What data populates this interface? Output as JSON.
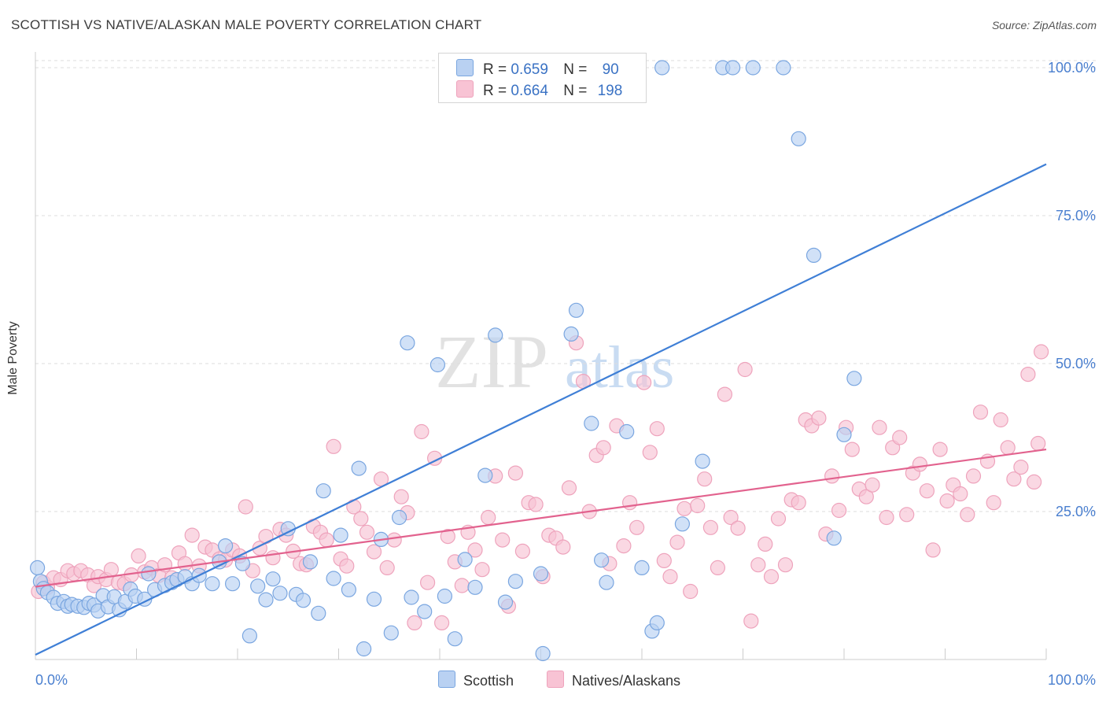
{
  "title": "SCOTTISH VS NATIVE/ALASKAN MALE POVERTY CORRELATION CHART",
  "source": "Source: ZipAtlas.com",
  "watermark": {
    "zip": "ZIP",
    "atlas": "atlas"
  },
  "colors": {
    "blue": "#3f7fd6",
    "blue_fill": "#b9d1f2",
    "pink": "#e2628e",
    "pink_fill": "#f8c3d4",
    "tick_text": "#4a7fcf",
    "grid": "#dddddd"
  },
  "legend_top": [
    {
      "series": "Scottish",
      "r_label": "R =",
      "r_value": "0.659",
      "n_label": "N =",
      "n_value": "90"
    },
    {
      "series": "Natives/Alaskans",
      "r_label": "R =",
      "r_value": "0.664",
      "n_label": "N =",
      "n_value": "198"
    }
  ],
  "legend_bottom": [
    "Scottish",
    "Natives/Alaskans"
  ],
  "chart_data": {
    "type": "scatter",
    "title": "SCOTTISH VS NATIVE/ALASKAN MALE POVERTY CORRELATION CHART",
    "xlabel": "",
    "ylabel": "Male Poverty",
    "xlim": [
      0,
      100
    ],
    "ylim": [
      0,
      102
    ],
    "x_tick_labels": {
      "left": "0.0%",
      "right": "100.0%"
    },
    "y_ticks": [
      25,
      50,
      75,
      100
    ],
    "y_tick_labels": [
      "25.0%",
      "50.0%",
      "75.0%",
      "100.0%"
    ],
    "grid": true,
    "series": [
      {
        "name": "Scottish",
        "r": 0.659,
        "n": 90,
        "trend": {
          "x": [
            0,
            100
          ],
          "y": [
            0.8,
            83.7
          ]
        },
        "points": [
          [
            0.2,
            15.5
          ],
          [
            0.5,
            13.2
          ],
          [
            0.8,
            12
          ],
          [
            1.2,
            11.3
          ],
          [
            1.8,
            10.5
          ],
          [
            2.2,
            9.5
          ],
          [
            2.8,
            9.8
          ],
          [
            3.2,
            9
          ],
          [
            3.6,
            9.3
          ],
          [
            4.2,
            9
          ],
          [
            4.8,
            8.8
          ],
          [
            5.3,
            9.5
          ],
          [
            5.8,
            9.2
          ],
          [
            6.2,
            8.2
          ],
          [
            6.7,
            10.8
          ],
          [
            7.2,
            8.9
          ],
          [
            7.8,
            10.6
          ],
          [
            8.3,
            8.4
          ],
          [
            8.9,
            9.8
          ],
          [
            9.4,
            11.9
          ],
          [
            9.9,
            10.7
          ],
          [
            10.8,
            10.2
          ],
          [
            11.2,
            14.5
          ],
          [
            11.8,
            11.8
          ],
          [
            12.8,
            12.5
          ],
          [
            13.5,
            13
          ],
          [
            14,
            13.5
          ],
          [
            14.8,
            14
          ],
          [
            15.5,
            12.8
          ],
          [
            16.2,
            14.2
          ],
          [
            17.5,
            12.8
          ],
          [
            18.2,
            16.5
          ],
          [
            18.8,
            19.2
          ],
          [
            19.5,
            12.8
          ],
          [
            20.5,
            16.2
          ],
          [
            21.2,
            4
          ],
          [
            22,
            12.4
          ],
          [
            22.8,
            10.1
          ],
          [
            23.5,
            13.6
          ],
          [
            24.2,
            11.2
          ],
          [
            25,
            22.1
          ],
          [
            25.8,
            11
          ],
          [
            26.5,
            10
          ],
          [
            27.2,
            16.5
          ],
          [
            28,
            7.8
          ],
          [
            28.5,
            28.5
          ],
          [
            29.5,
            13.7
          ],
          [
            30.2,
            21
          ],
          [
            31,
            11.8
          ],
          [
            32,
            32.3
          ],
          [
            32.5,
            1.8
          ],
          [
            33.5,
            10.2
          ],
          [
            34.2,
            20.3
          ],
          [
            35.2,
            4.5
          ],
          [
            36,
            24
          ],
          [
            36.8,
            53.5
          ],
          [
            37.2,
            10.5
          ],
          [
            38.5,
            8.1
          ],
          [
            39.8,
            49.8
          ],
          [
            40.5,
            10.7
          ],
          [
            41.5,
            3.5
          ],
          [
            42.5,
            16.9
          ],
          [
            43.5,
            12.2
          ],
          [
            44.5,
            31.1
          ],
          [
            45.5,
            54.8
          ],
          [
            46.5,
            9.7
          ],
          [
            47.5,
            13.2
          ],
          [
            50,
            14.5
          ],
          [
            50.2,
            1
          ],
          [
            53,
            55
          ],
          [
            53.5,
            59
          ],
          [
            55,
            39.9
          ],
          [
            56,
            16.8
          ],
          [
            56.5,
            13
          ],
          [
            58.5,
            38.5
          ],
          [
            60,
            15.5
          ],
          [
            61,
            4.8
          ],
          [
            61.5,
            6.2
          ],
          [
            62,
            100
          ],
          [
            64,
            22.9
          ],
          [
            66,
            33.5
          ],
          [
            68,
            100
          ],
          [
            69,
            100
          ],
          [
            71,
            100
          ],
          [
            74,
            100
          ],
          [
            75.5,
            88
          ],
          [
            77,
            68.3
          ],
          [
            79,
            20.5
          ],
          [
            80,
            38
          ],
          [
            81,
            47.5
          ]
        ]
      },
      {
        "name": "Natives/Alaskans",
        "r": 0.664,
        "n": 198,
        "trend": {
          "x": [
            0,
            100
          ],
          "y": [
            12.3,
            35.5
          ]
        },
        "points": [
          [
            0.3,
            11.5
          ],
          [
            0.8,
            13
          ],
          [
            1.2,
            12.2
          ],
          [
            1.8,
            13.8
          ],
          [
            2.5,
            13.5
          ],
          [
            3.2,
            15
          ],
          [
            3.8,
            14.5
          ],
          [
            4.5,
            15
          ],
          [
            5.2,
            14.3
          ],
          [
            5.8,
            12.5
          ],
          [
            6.2,
            14
          ],
          [
            7,
            13.5
          ],
          [
            7.5,
            15.2
          ],
          [
            8.2,
            13
          ],
          [
            8.8,
            12.8
          ],
          [
            9.5,
            14.3
          ],
          [
            10.2,
            17.5
          ],
          [
            10.8,
            14.8
          ],
          [
            11.5,
            15.5
          ],
          [
            12.2,
            14.2
          ],
          [
            12.8,
            16
          ],
          [
            13.5,
            13.8
          ],
          [
            14.2,
            18
          ],
          [
            14.8,
            16.2
          ],
          [
            15.5,
            21
          ],
          [
            16.2,
            15.8
          ],
          [
            16.8,
            19
          ],
          [
            17.5,
            18.5
          ],
          [
            18.2,
            17
          ],
          [
            18.8,
            16.8
          ],
          [
            19.5,
            18.5
          ],
          [
            20.2,
            17.5
          ],
          [
            20.8,
            25.8
          ],
          [
            21.5,
            15
          ],
          [
            22.2,
            18.8
          ],
          [
            22.8,
            20.8
          ],
          [
            23.5,
            17.2
          ],
          [
            24.2,
            22
          ],
          [
            24.8,
            21
          ],
          [
            25.5,
            18.3
          ],
          [
            26.2,
            16.2
          ],
          [
            26.8,
            16
          ],
          [
            27.5,
            22.5
          ],
          [
            28.2,
            21.5
          ],
          [
            28.8,
            20.2
          ],
          [
            29.5,
            36
          ],
          [
            30.2,
            17
          ],
          [
            30.8,
            15.8
          ],
          [
            31.5,
            25.8
          ],
          [
            32.2,
            23.8
          ],
          [
            32.8,
            21.5
          ],
          [
            33.5,
            18.2
          ],
          [
            34.2,
            30.5
          ],
          [
            34.8,
            15.5
          ],
          [
            35.5,
            20.2
          ],
          [
            36.2,
            27.5
          ],
          [
            36.8,
            24.8
          ],
          [
            37.5,
            6.2
          ],
          [
            38.2,
            38.5
          ],
          [
            38.8,
            13
          ],
          [
            39.5,
            34
          ],
          [
            40.2,
            6.2
          ],
          [
            40.8,
            20.8
          ],
          [
            41.5,
            16.5
          ],
          [
            42.2,
            12.5
          ],
          [
            42.8,
            21.5
          ],
          [
            43.5,
            18.5
          ],
          [
            44.2,
            15.2
          ],
          [
            44.8,
            24
          ],
          [
            45.5,
            31
          ],
          [
            46.2,
            20.2
          ],
          [
            46.8,
            9
          ],
          [
            47.5,
            31.5
          ],
          [
            48.2,
            18.3
          ],
          [
            48.8,
            26.5
          ],
          [
            49.5,
            26.2
          ],
          [
            50.2,
            14
          ],
          [
            50.8,
            21
          ],
          [
            51.5,
            20.5
          ],
          [
            52.2,
            19
          ],
          [
            52.8,
            29
          ],
          [
            53.5,
            53.5
          ],
          [
            54.2,
            47
          ],
          [
            54.8,
            25
          ],
          [
            55.5,
            34.5
          ],
          [
            56.2,
            35.8
          ],
          [
            56.8,
            16.2
          ],
          [
            57.5,
            39.5
          ],
          [
            58.2,
            19.2
          ],
          [
            58.8,
            26.5
          ],
          [
            59.5,
            22.3
          ],
          [
            60.2,
            46.8
          ],
          [
            60.8,
            35
          ],
          [
            61.5,
            39
          ],
          [
            62.2,
            16.7
          ],
          [
            62.8,
            14
          ],
          [
            63.5,
            19.8
          ],
          [
            64.2,
            25.5
          ],
          [
            64.8,
            11.5
          ],
          [
            65.5,
            26
          ],
          [
            66.2,
            30.5
          ],
          [
            66.8,
            22.3
          ],
          [
            67.5,
            15.5
          ],
          [
            68.2,
            44.8
          ],
          [
            68.8,
            24
          ],
          [
            69.5,
            22.2
          ],
          [
            70.2,
            49
          ],
          [
            70.8,
            6.5
          ],
          [
            71.5,
            16
          ],
          [
            72.2,
            19.5
          ],
          [
            72.8,
            14
          ],
          [
            73.5,
            23.8
          ],
          [
            74.2,
            16
          ],
          [
            74.8,
            27
          ],
          [
            75.5,
            26.5
          ],
          [
            76.2,
            40.5
          ],
          [
            76.8,
            39.5
          ],
          [
            77.5,
            40.8
          ],
          [
            78.2,
            21.2
          ],
          [
            78.8,
            31
          ],
          [
            79.5,
            25.2
          ],
          [
            80.2,
            39.2
          ],
          [
            80.8,
            35.5
          ],
          [
            81.5,
            28.8
          ],
          [
            82.2,
            27.5
          ],
          [
            82.8,
            29.5
          ],
          [
            83.5,
            39.2
          ],
          [
            84.2,
            24
          ],
          [
            84.8,
            35.8
          ],
          [
            85.5,
            37.5
          ],
          [
            86.2,
            24.5
          ],
          [
            86.8,
            31.5
          ],
          [
            87.5,
            33
          ],
          [
            88.2,
            28.5
          ],
          [
            88.8,
            18.5
          ],
          [
            89.5,
            35.5
          ],
          [
            90.2,
            26.8
          ],
          [
            90.8,
            29.5
          ],
          [
            91.5,
            28
          ],
          [
            92.2,
            24.5
          ],
          [
            92.8,
            31
          ],
          [
            93.5,
            41.8
          ],
          [
            94.2,
            33.5
          ],
          [
            94.8,
            26.5
          ],
          [
            95.5,
            40.5
          ],
          [
            96.2,
            35.8
          ],
          [
            96.8,
            30.5
          ],
          [
            97.5,
            32.5
          ],
          [
            98.2,
            48.2
          ],
          [
            98.8,
            30
          ],
          [
            99.2,
            36.5
          ],
          [
            99.5,
            52
          ]
        ]
      }
    ]
  }
}
